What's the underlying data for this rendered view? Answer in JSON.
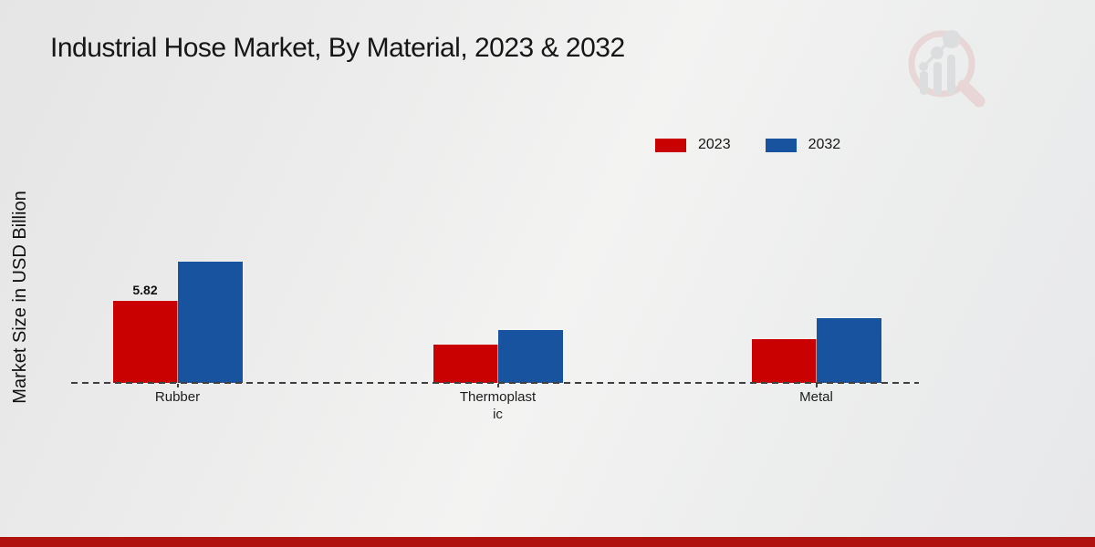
{
  "page": {
    "title": "Industrial Hose Market, By Material, 2023 & 2032",
    "watermark_icon": "magnifier-bar-chart-logo-icon"
  },
  "colors": {
    "series_2023": "#c90101",
    "series_2032": "#17539f",
    "footer_bar": "#b01210",
    "baseline": "#3f3f3f",
    "watermark_pink": "#e6c8c8",
    "watermark_gray": "#d2d3d6"
  },
  "chart_data": {
    "type": "bar",
    "title": "Industrial Hose Market, By Material, 2023 & 2032",
    "xlabel": "",
    "ylabel": "Market Size in USD Billion",
    "categories": [
      "Rubber",
      "Thermoplastic",
      "Metal"
    ],
    "category_label_lines": [
      [
        "Rubber"
      ],
      [
        "Thermoplast",
        "ic"
      ],
      [
        "Metal"
      ]
    ],
    "series": [
      {
        "name": "2023",
        "color": "#c90101",
        "values": [
          5.82,
          2.7,
          3.1
        ],
        "value_labels": [
          "5.82",
          "",
          ""
        ]
      },
      {
        "name": "2032",
        "color": "#17539f",
        "values": [
          8.6,
          3.75,
          4.6
        ],
        "value_labels": [
          "",
          "",
          ""
        ]
      }
    ],
    "ylim": [
      0,
      9.5
    ],
    "y_axis_ticks_visible": false,
    "grid": false,
    "zero_line_style": "dashed",
    "legend_position": "top-right",
    "units": "USD Billion"
  }
}
